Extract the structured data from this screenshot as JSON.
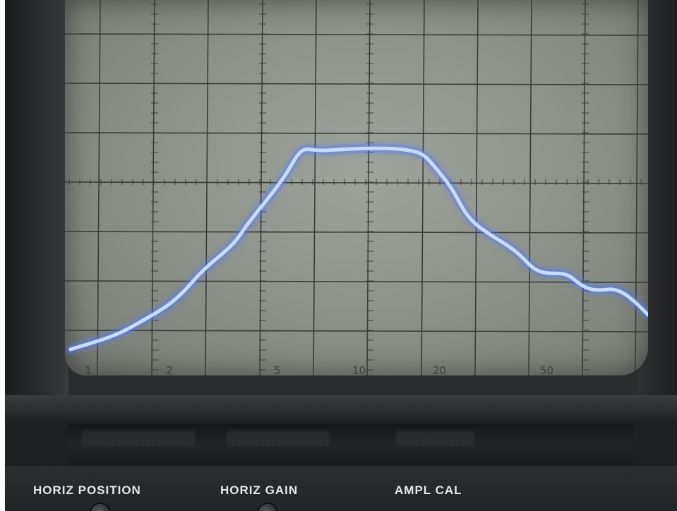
{
  "scene": "oscilloscope",
  "screen": {
    "phosphor_color": "#c9dcff",
    "glow_color": "#4f7dff",
    "grid_color": "#3a3d38",
    "background_color": "#8e938b"
  },
  "scale_labels": [
    "1",
    "2",
    "5",
    "10",
    "20",
    "50"
  ],
  "panel": {
    "labels": [
      "HORIZ POSITION",
      "HORIZ GAIN",
      "AMPL CAL"
    ]
  }
}
